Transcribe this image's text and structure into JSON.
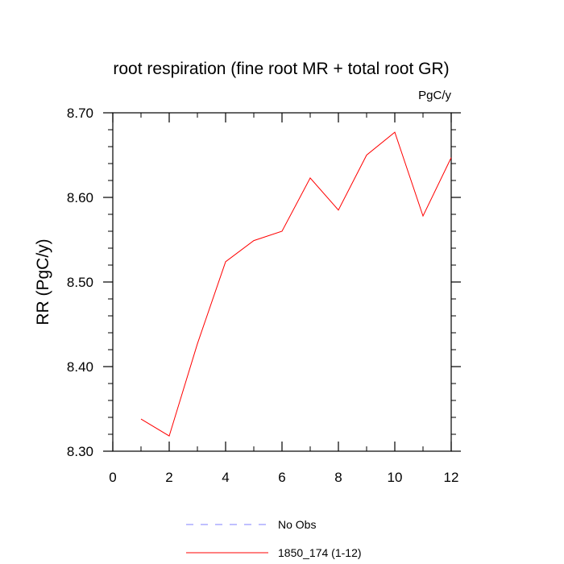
{
  "chart_data": {
    "type": "line",
    "title": "root respiration (fine root MR + total root GR)",
    "units": "PgC/y",
    "ylabel": "RR  (PgC/y)",
    "xlabel": "",
    "xlim": [
      0,
      12
    ],
    "ylim": [
      8.3,
      8.7
    ],
    "x_ticks": [
      0,
      2,
      4,
      6,
      8,
      10,
      12
    ],
    "x_tick_labels": [
      "0",
      "2",
      "4",
      "6",
      "8",
      "10",
      "12"
    ],
    "y_ticks": [
      8.3,
      8.4,
      8.5,
      8.6,
      8.7
    ],
    "y_tick_labels": [
      "8.30",
      "8.40",
      "8.50",
      "8.60",
      "8.70"
    ],
    "grid": false,
    "legend_position": "bottom",
    "series": [
      {
        "name": "1850_174 (1-12)",
        "color": "#ff0000",
        "style": "solid",
        "x": [
          1,
          2,
          3,
          4,
          5,
          6,
          7,
          8,
          9,
          10,
          11,
          12
        ],
        "y": [
          8.338,
          8.318,
          8.427,
          8.524,
          8.549,
          8.56,
          8.623,
          8.585,
          8.65,
          8.677,
          8.578,
          8.647
        ]
      }
    ],
    "legend": [
      {
        "label": "No Obs",
        "color": "#8080ff",
        "style": "dashed"
      },
      {
        "label": "1850_174 (1-12)",
        "color": "#ff0000",
        "style": "solid"
      }
    ]
  }
}
